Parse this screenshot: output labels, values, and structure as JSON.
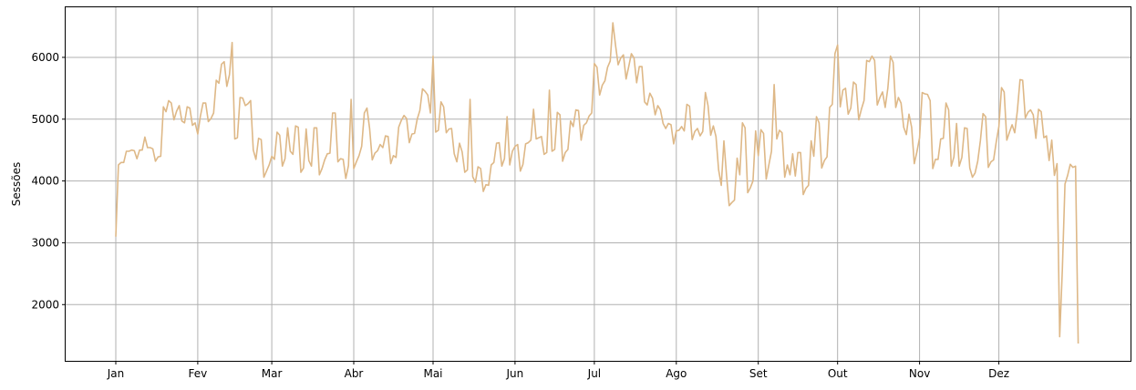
{
  "chart_data": {
    "type": "line",
    "title": "",
    "xlabel": "",
    "ylabel": "Sessões",
    "x_tick_labels": [
      "Jan",
      "Fev",
      "Mar",
      "Abr",
      "Mai",
      "Jun",
      "Jul",
      "Ago",
      "Set",
      "Out",
      "Nov",
      "Dez"
    ],
    "y_ticks": [
      2000,
      3000,
      4000,
      5000,
      6000
    ],
    "ylim": [
      1090,
      6810
    ],
    "grid": true,
    "colors": {
      "series": "#deb887",
      "grid": "#b0b0b0",
      "axes": "#000000"
    },
    "series": [
      {
        "values": [
          3100,
          4260,
          4300,
          4300,
          4480,
          4480,
          4500,
          4490,
          4360,
          4500,
          4500,
          4710,
          4540,
          4540,
          4520,
          4320,
          4390,
          4400,
          5200,
          5120,
          5300,
          5260,
          4990,
          5130,
          5220,
          4970,
          4940,
          5200,
          5180,
          4900,
          4940,
          4760,
          5050,
          5260,
          5260,
          4960,
          5010,
          5100,
          5630,
          5580,
          5890,
          5930,
          5530,
          5720,
          6240,
          4680,
          4700,
          5350,
          5340,
          5220,
          5250,
          5300,
          4500,
          4350,
          4690,
          4670,
          4060,
          4160,
          4260,
          4400,
          4350,
          4790,
          4740,
          4240,
          4360,
          4860,
          4480,
          4430,
          4890,
          4870,
          4140,
          4210,
          4840,
          4330,
          4240,
          4860,
          4860,
          4100,
          4200,
          4340,
          4440,
          4450,
          5100,
          5100,
          4310,
          4360,
          4350,
          4040,
          4250,
          5320,
          4200,
          4310,
          4410,
          4560,
          5100,
          5180,
          4850,
          4340,
          4450,
          4490,
          4590,
          4540,
          4730,
          4720,
          4280,
          4410,
          4380,
          4870,
          4980,
          5060,
          5010,
          4620,
          4760,
          4770,
          5000,
          5140,
          5490,
          5450,
          5390,
          5100,
          6020,
          4790,
          4820,
          5280,
          5200,
          4780,
          4840,
          4850,
          4440,
          4310,
          4610,
          4470,
          4140,
          4180,
          5320,
          4070,
          3980,
          4230,
          4200,
          3830,
          3940,
          3930,
          4260,
          4300,
          4610,
          4620,
          4240,
          4360,
          5040,
          4260,
          4480,
          4560,
          4590,
          4160,
          4270,
          4600,
          4620,
          4660,
          5160,
          4680,
          4700,
          4720,
          4430,
          4460,
          5470,
          4480,
          4510,
          5110,
          5070,
          4320,
          4460,
          4510,
          4970,
          4880,
          5150,
          5140,
          4660,
          4900,
          4940,
          5050,
          5100,
          5900,
          5840,
          5390,
          5550,
          5620,
          5840,
          5940,
          6560,
          6200,
          5880,
          5990,
          6040,
          5650,
          5850,
          6060,
          5990,
          5590,
          5850,
          5850,
          5280,
          5230,
          5420,
          5340,
          5070,
          5220,
          5150,
          4930,
          4850,
          4930,
          4910,
          4600,
          4810,
          4820,
          4880,
          4810,
          5240,
          5210,
          4670,
          4800,
          4850,
          4730,
          4800,
          5430,
          5220,
          4740,
          4890,
          4720,
          4180,
          3930,
          4650,
          4090,
          3600,
          3650,
          3690,
          4370,
          4100,
          4940,
          4860,
          3810,
          3890,
          4000,
          4810,
          4410,
          4830,
          4770,
          4030,
          4260,
          4480,
          5560,
          4680,
          4820,
          4780,
          4060,
          4260,
          4100,
          4440,
          4080,
          4460,
          4460,
          3780,
          3880,
          3930,
          4650,
          4400,
          5040,
          4940,
          4210,
          4330,
          4390,
          5190,
          5240,
          6060,
          6200,
          5200,
          5470,
          5500,
          5080,
          5180,
          5600,
          5560,
          4990,
          5160,
          5300,
          5950,
          5930,
          6020,
          5950,
          5230,
          5350,
          5440,
          5190,
          5500,
          6020,
          5920,
          5190,
          5350,
          5260,
          4870,
          4750,
          5080,
          4870,
          4280,
          4470,
          4700,
          5430,
          5410,
          5400,
          5300,
          4200,
          4350,
          4350,
          4680,
          4690,
          5260,
          5150,
          4240,
          4390,
          4930,
          4240,
          4380,
          4860,
          4850,
          4210,
          4060,
          4130,
          4320,
          4650,
          5090,
          5040,
          4220,
          4310,
          4340,
          4630,
          4880,
          5510,
          5440,
          4660,
          4790,
          4910,
          4780,
          5140,
          5640,
          5630,
          5020,
          5110,
          5150,
          5070,
          4690,
          5160,
          5120,
          4700,
          4730,
          4330,
          4660,
          4090,
          4280,
          1480,
          2560,
          3950,
          4090,
          4270,
          4220,
          4240,
          1370
        ]
      }
    ]
  }
}
